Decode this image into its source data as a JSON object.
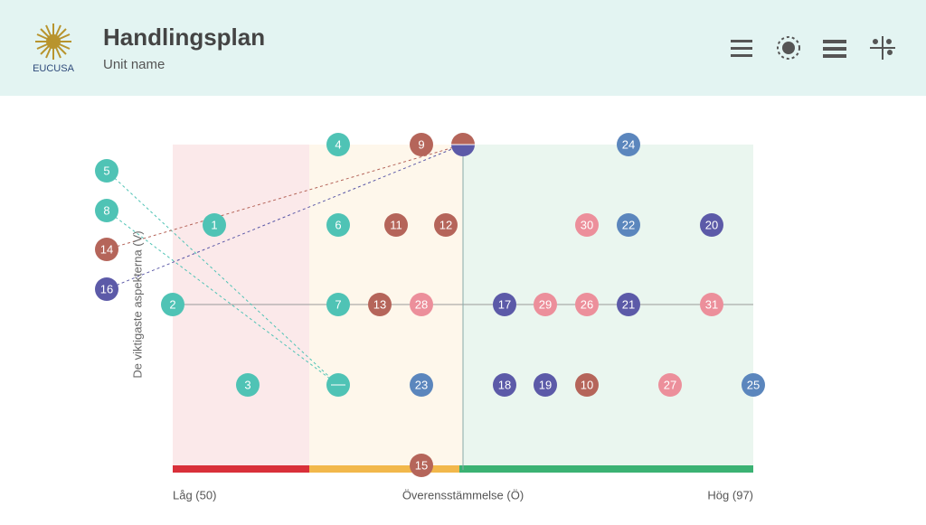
{
  "header": {
    "logo_text": "EUCUSA",
    "title": "Handlingsplan",
    "subtitle": "Unit name"
  },
  "chart": {
    "y_axis_label": "De viktigaste aspekterna (V)",
    "x_axis_label": "Överensstämmelse (Ö)",
    "x_min_label": "Låg (50)",
    "x_max_label": "Hög (97)",
    "nodes": [
      {
        "label": 4,
        "color": "#4fc3b5"
      },
      {
        "label": 9,
        "color": "#b5655a"
      },
      {
        "label": 24,
        "color": "#5b86bd"
      },
      {
        "label": 5,
        "color": "#4fc3b5"
      },
      {
        "label": 8,
        "color": "#4fc3b5"
      },
      {
        "label": 14,
        "color": "#b5655a"
      },
      {
        "label": 16,
        "color": "#5c5aa8"
      },
      {
        "label": 1,
        "color": "#4fc3b5"
      },
      {
        "label": 6,
        "color": "#4fc3b5"
      },
      {
        "label": 11,
        "color": "#b5655a"
      },
      {
        "label": 12,
        "color": "#b5655a"
      },
      {
        "label": 30,
        "color": "#ec8f9b"
      },
      {
        "label": 22,
        "color": "#5b86bd"
      },
      {
        "label": 20,
        "color": "#5c5aa8"
      },
      {
        "label": 2,
        "color": "#4fc3b5"
      },
      {
        "label": 7,
        "color": "#4fc3b5"
      },
      {
        "label": 13,
        "color": "#b5655a"
      },
      {
        "label": 28,
        "color": "#ec8f9b"
      },
      {
        "label": 17,
        "color": "#5c5aa8"
      },
      {
        "label": 29,
        "color": "#ec8f9b"
      },
      {
        "label": 26,
        "color": "#ec8f9b"
      },
      {
        "label": 21,
        "color": "#5c5aa8"
      },
      {
        "label": 31,
        "color": "#ec8f9b"
      },
      {
        "label": 3,
        "color": "#4fc3b5"
      },
      {
        "label": 23,
        "color": "#5b86bd"
      },
      {
        "label": 18,
        "color": "#5c5aa8"
      },
      {
        "label": 19,
        "color": "#5c5aa8"
      },
      {
        "label": 10,
        "color": "#b5655a"
      },
      {
        "label": 27,
        "color": "#ec8f9b"
      },
      {
        "label": 25,
        "color": "#5b86bd"
      },
      {
        "label": 15,
        "color": "#b5655a"
      }
    ]
  }
}
